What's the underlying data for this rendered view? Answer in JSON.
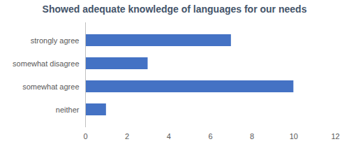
{
  "chart_data": {
    "type": "bar",
    "orientation": "horizontal",
    "title": "Showed adequate knowledge of languages for our needs",
    "categories": [
      "strongly agree",
      "somewhat disagree",
      "somewhat agree",
      "neither"
    ],
    "values": [
      7,
      3,
      10,
      1
    ],
    "color": "#4472c4",
    "xlim": [
      0,
      12
    ],
    "xticks": [
      0,
      2,
      4,
      6,
      8,
      10,
      12
    ],
    "grid": false
  }
}
